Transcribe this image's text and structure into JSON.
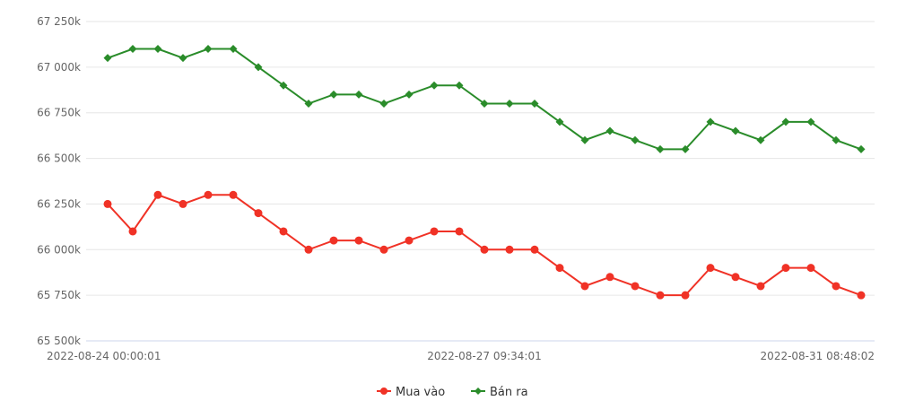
{
  "chart_data": {
    "type": "line",
    "title": "",
    "xlabel": "",
    "ylabel": "",
    "ylim": [
      65500,
      67250
    ],
    "y_ticks": [
      65500,
      65750,
      66000,
      66250,
      66500,
      66750,
      67000,
      67250
    ],
    "y_tick_labels": [
      "65 500k",
      "65 750k",
      "66 000k",
      "66 250k",
      "66 500k",
      "66 750k",
      "67 000k",
      "67 250k"
    ],
    "x_tick_labels": [
      {
        "index": 0,
        "label": "2022-08-24 00:00:01"
      },
      {
        "index": 15,
        "label": "2022-08-27 09:34:01"
      },
      {
        "index": 30,
        "label": "2022-08-31 08:48:02"
      }
    ],
    "grid": true,
    "legend_position": "bottom-center",
    "series": [
      {
        "name": "Mua vào",
        "color": "#f03226",
        "marker": "circle",
        "values": [
          66250,
          66100,
          66300,
          66250,
          66300,
          66300,
          66200,
          66100,
          66000,
          66050,
          66050,
          66000,
          66050,
          66100,
          66100,
          66000,
          66000,
          66000,
          65900,
          65800,
          65850,
          65800,
          65750,
          65750,
          65900,
          65850,
          65800,
          65900,
          65900,
          65800,
          65750
        ]
      },
      {
        "name": "Bán ra",
        "color": "#2a8c2a",
        "marker": "diamond",
        "values": [
          67050,
          67100,
          67100,
          67050,
          67100,
          67100,
          67000,
          66900,
          66800,
          66850,
          66850,
          66800,
          66850,
          66900,
          66900,
          66800,
          66800,
          66800,
          66700,
          66600,
          66650,
          66600,
          66550,
          66550,
          66700,
          66650,
          66600,
          66700,
          66700,
          66600,
          66550
        ]
      }
    ]
  }
}
